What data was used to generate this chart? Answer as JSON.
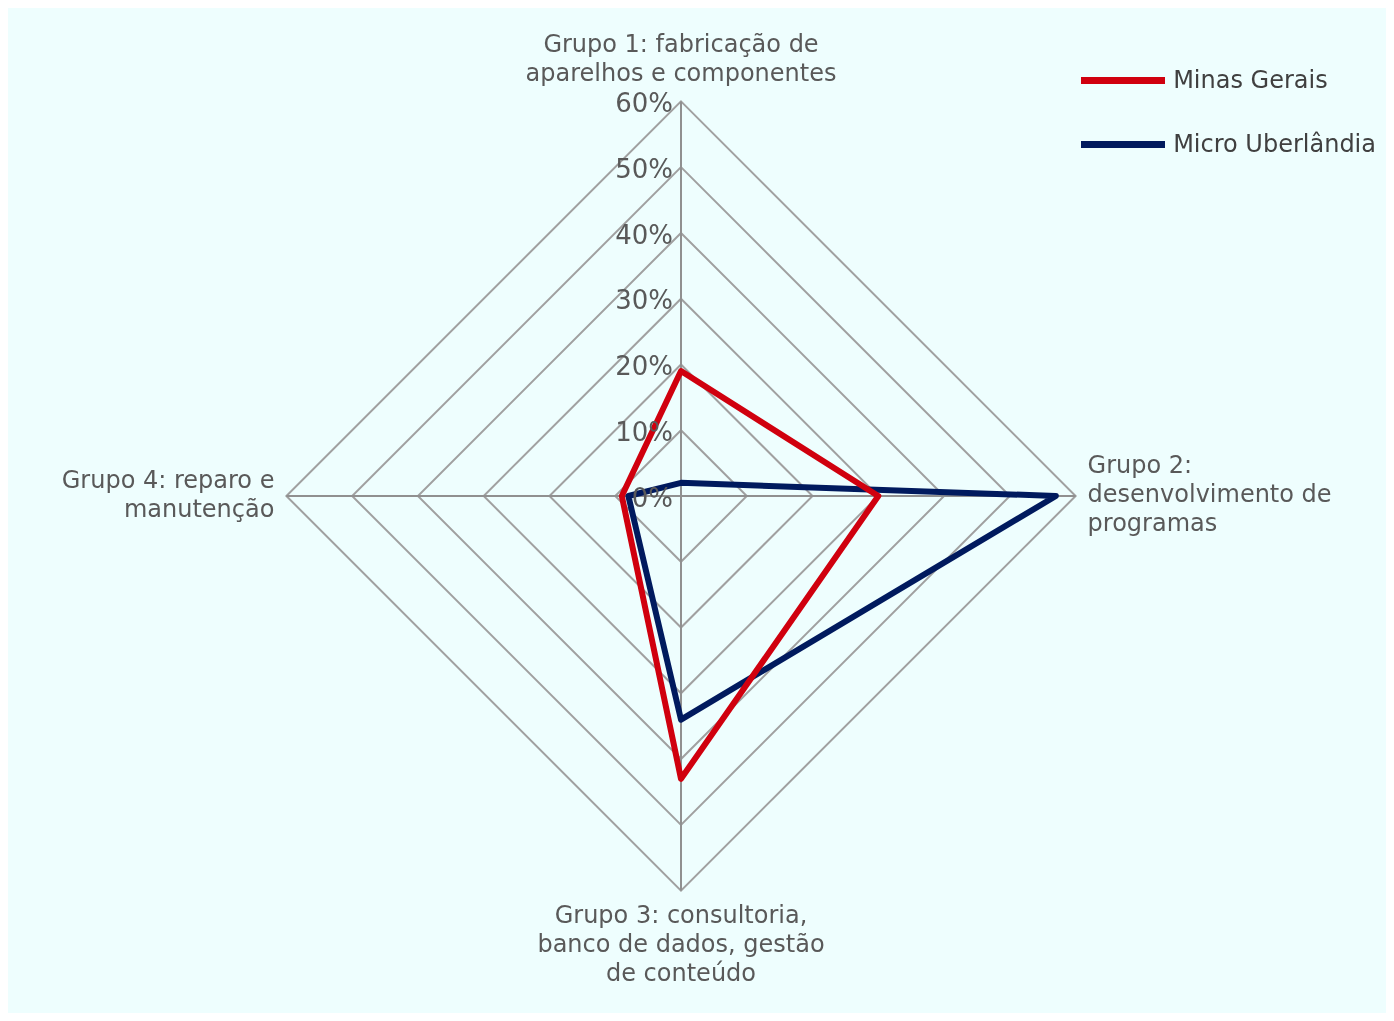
{
  "chart_data": {
    "type": "radar",
    "categories": [
      "Grupo 1: fabricação de aparelhos e componentes",
      "Grupo 2: desenvolvimento de programas",
      "Grupo 3: consultoria, banco de dados, gestão de conteúdo",
      "Grupo 4: reparo e manutenção"
    ],
    "series": [
      {
        "name": "Minas Gerais",
        "color": "#d0000e",
        "values": [
          19,
          30,
          43,
          9
        ]
      },
      {
        "name": "Micro Uberlândia",
        "color": "#001a5e",
        "values": [
          2,
          57,
          34,
          8
        ]
      }
    ],
    "ylim": [
      0,
      60
    ],
    "yticks": [
      {
        "value": 0,
        "label": "0%"
      },
      {
        "value": 10,
        "label": "10%"
      },
      {
        "value": 20,
        "label": "20%"
      },
      {
        "value": 30,
        "label": "30%"
      },
      {
        "value": 40,
        "label": "40%"
      },
      {
        "value": 50,
        "label": "50%"
      },
      {
        "value": 60,
        "label": "60%"
      }
    ],
    "legend": "top right"
  }
}
